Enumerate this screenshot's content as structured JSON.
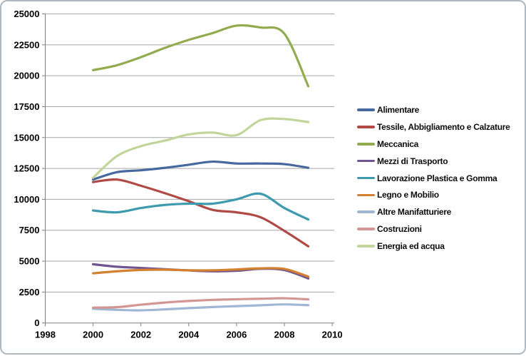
{
  "chart_data": {
    "type": "line",
    "smoothed": true,
    "grid": true,
    "legend_position": "right",
    "x": [
      2000,
      2001,
      2002,
      2003,
      2004,
      2005,
      2006,
      2007,
      2008,
      2009
    ],
    "xlim": [
      1998,
      2010
    ],
    "xticks": [
      1998,
      2000,
      2002,
      2004,
      2006,
      2008,
      2010
    ],
    "ylim": [
      0,
      25000
    ],
    "ytick_step": 2500,
    "yticks": [
      0,
      2500,
      5000,
      7500,
      10000,
      12500,
      15000,
      17500,
      20000,
      22500,
      25000
    ],
    "title": "",
    "xlabel": "",
    "ylabel": "",
    "series": [
      {
        "name": "Alimentare",
        "color": "#45699E",
        "values": [
          11600,
          12200,
          12350,
          12550,
          12800,
          13050,
          12900,
          12900,
          12850,
          12550
        ]
      },
      {
        "name": "Tessile, Abbigliamento e Calzature",
        "color": "#B04A45",
        "values": [
          11400,
          11600,
          11100,
          10500,
          9850,
          9150,
          8950,
          8550,
          7450,
          6200
        ]
      },
      {
        "name": "Meccanica",
        "color": "#92AB4F",
        "values": [
          20450,
          20850,
          21500,
          22250,
          22900,
          23450,
          24050,
          23900,
          23400,
          19150
        ]
      },
      {
        "name": "Mezzi di Trasporto",
        "color": "#705590",
        "values": [
          4750,
          4550,
          4450,
          4350,
          4250,
          4180,
          4220,
          4380,
          4280,
          3600
        ]
      },
      {
        "name": "Lavorazione Plastica e Gomma",
        "color": "#3E9BAD",
        "values": [
          9100,
          8950,
          9300,
          9550,
          9650,
          9650,
          10000,
          10450,
          9300,
          8370
        ]
      },
      {
        "name": "Legno e Mobilio",
        "color": "#D3802F",
        "values": [
          4020,
          4180,
          4290,
          4310,
          4260,
          4260,
          4330,
          4420,
          4370,
          3750
        ]
      },
      {
        "name": "Altre Manifatturiere",
        "color": "#9FB6D4",
        "values": [
          1150,
          1060,
          1020,
          1100,
          1200,
          1290,
          1360,
          1430,
          1500,
          1440
        ]
      },
      {
        "name": "Costruzioni",
        "color": "#D39694",
        "values": [
          1240,
          1280,
          1480,
          1650,
          1780,
          1870,
          1920,
          1960,
          2000,
          1910
        ]
      },
      {
        "name": "Energia ed acqua",
        "color": "#C2D59A",
        "values": [
          11750,
          13500,
          14300,
          14750,
          15250,
          15400,
          15200,
          16400,
          16500,
          16250
        ]
      }
    ]
  },
  "colors": {
    "gridline": "#A6A6A6",
    "axis": "#7F7F7F",
    "tick_text": "#000000",
    "background": "#FFFFFF",
    "frame_border": "#AEB9C2"
  }
}
